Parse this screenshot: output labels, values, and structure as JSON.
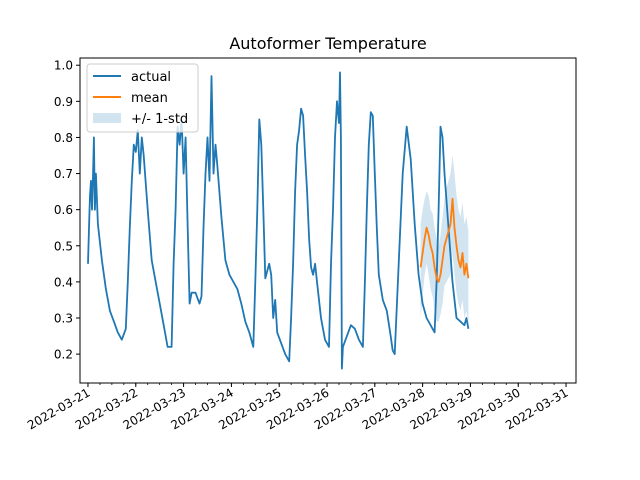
{
  "chart_data": {
    "type": "line",
    "title": "Autoformer Temperature",
    "xlabel": "",
    "ylabel": "",
    "xlim": [
      "2022-03-20T20:00",
      "2022-03-31T05:00"
    ],
    "ylim": [
      0.12,
      1.02
    ],
    "yticks": [
      0.2,
      0.3,
      0.4,
      0.5,
      0.6,
      0.7,
      0.8,
      0.9,
      1.0
    ],
    "ytick_labels": [
      "0.2",
      "0.3",
      "0.4",
      "0.5",
      "0.6",
      "0.7",
      "0.8",
      "0.9",
      "1.0"
    ],
    "xticks": [
      "2022-03-21",
      "2022-03-22",
      "2022-03-23",
      "2022-03-24",
      "2022-03-25",
      "2022-03-26",
      "2022-03-27",
      "2022-03-28",
      "2022-03-29",
      "2022-03-30",
      "2022-03-31"
    ],
    "xtick_labels": [
      "2022-03-21",
      "2022-03-22",
      "2022-03-23",
      "2022-03-24",
      "2022-03-25",
      "2022-03-26",
      "2022-03-27",
      "2022-03-28",
      "2022-03-29",
      "2022-03-30",
      "2022-03-31"
    ],
    "minor_xtick_hours": 6,
    "grid": false,
    "legend_position": "top-left",
    "series": [
      {
        "name": "actual",
        "color": "#1f77b4",
        "kind": "line",
        "points": [
          [
            "2022-03-21T00:00",
            0.45
          ],
          [
            "2022-03-21T00:30",
            0.55
          ],
          [
            "2022-03-21T01:00",
            0.64
          ],
          [
            "2022-03-21T01:30",
            0.68
          ],
          [
            "2022-03-21T02:00",
            0.6
          ],
          [
            "2022-03-21T02:30",
            0.68
          ],
          [
            "2022-03-21T03:00",
            0.8
          ],
          [
            "2022-03-21T03:30",
            0.6
          ],
          [
            "2022-03-21T04:00",
            0.7
          ],
          [
            "2022-03-21T05:00",
            0.56
          ],
          [
            "2022-03-21T07:00",
            0.46
          ],
          [
            "2022-03-21T09:00",
            0.38
          ],
          [
            "2022-03-21T11:00",
            0.32
          ],
          [
            "2022-03-21T13:00",
            0.29
          ],
          [
            "2022-03-21T15:00",
            0.26
          ],
          [
            "2022-03-21T17:00",
            0.24
          ],
          [
            "2022-03-21T19:00",
            0.27
          ],
          [
            "2022-03-21T20:00",
            0.4
          ],
          [
            "2022-03-21T21:00",
            0.55
          ],
          [
            "2022-03-21T22:00",
            0.68
          ],
          [
            "2022-03-21T23:00",
            0.78
          ],
          [
            "2022-03-22T00:00",
            0.76
          ],
          [
            "2022-03-22T01:00",
            0.82
          ],
          [
            "2022-03-22T02:00",
            0.7
          ],
          [
            "2022-03-22T03:00",
            0.8
          ],
          [
            "2022-03-22T04:00",
            0.75
          ],
          [
            "2022-03-22T06:00",
            0.6
          ],
          [
            "2022-03-22T08:00",
            0.46
          ],
          [
            "2022-03-22T10:00",
            0.4
          ],
          [
            "2022-03-22T12:00",
            0.34
          ],
          [
            "2022-03-22T14:00",
            0.28
          ],
          [
            "2022-03-22T16:00",
            0.22
          ],
          [
            "2022-03-22T18:00",
            0.22
          ],
          [
            "2022-03-22T19:00",
            0.45
          ],
          [
            "2022-03-22T20:00",
            0.6
          ],
          [
            "2022-03-22T21:00",
            0.83
          ],
          [
            "2022-03-22T22:00",
            0.78
          ],
          [
            "2022-03-22T23:00",
            0.85
          ],
          [
            "2022-03-23T00:00",
            0.7
          ],
          [
            "2022-03-23T01:00",
            0.8
          ],
          [
            "2022-03-23T02:00",
            0.56
          ],
          [
            "2022-03-23T03:00",
            0.34
          ],
          [
            "2022-03-23T04:00",
            0.37
          ],
          [
            "2022-03-23T06:00",
            0.37
          ],
          [
            "2022-03-23T08:00",
            0.34
          ],
          [
            "2022-03-23T09:00",
            0.36
          ],
          [
            "2022-03-23T10:00",
            0.55
          ],
          [
            "2022-03-23T11:00",
            0.7
          ],
          [
            "2022-03-23T12:00",
            0.8
          ],
          [
            "2022-03-23T13:00",
            0.68
          ],
          [
            "2022-03-23T14:00",
            0.97
          ],
          [
            "2022-03-23T15:00",
            0.7
          ],
          [
            "2022-03-23T16:00",
            0.78
          ],
          [
            "2022-03-23T17:00",
            0.72
          ],
          [
            "2022-03-23T19:00",
            0.58
          ],
          [
            "2022-03-23T21:00",
            0.46
          ],
          [
            "2022-03-23T23:00",
            0.42
          ],
          [
            "2022-03-24T01:00",
            0.4
          ],
          [
            "2022-03-24T03:00",
            0.38
          ],
          [
            "2022-03-24T05:00",
            0.34
          ],
          [
            "2022-03-24T07:00",
            0.29
          ],
          [
            "2022-03-24T09:00",
            0.26
          ],
          [
            "2022-03-24T11:00",
            0.22
          ],
          [
            "2022-03-24T12:00",
            0.4
          ],
          [
            "2022-03-24T13:00",
            0.6
          ],
          [
            "2022-03-24T14:00",
            0.85
          ],
          [
            "2022-03-24T15:00",
            0.78
          ],
          [
            "2022-03-24T16:00",
            0.6
          ],
          [
            "2022-03-24T17:00",
            0.41
          ],
          [
            "2022-03-24T18:00",
            0.43
          ],
          [
            "2022-03-24T19:00",
            0.45
          ],
          [
            "2022-03-24T20:00",
            0.42
          ],
          [
            "2022-03-24T21:00",
            0.3
          ],
          [
            "2022-03-24T22:00",
            0.35
          ],
          [
            "2022-03-24T23:00",
            0.26
          ],
          [
            "2022-03-25T01:00",
            0.23
          ],
          [
            "2022-03-25T03:00",
            0.2
          ],
          [
            "2022-03-25T05:00",
            0.18
          ],
          [
            "2022-03-25T06:00",
            0.3
          ],
          [
            "2022-03-25T07:00",
            0.45
          ],
          [
            "2022-03-25T08:00",
            0.65
          ],
          [
            "2022-03-25T09:00",
            0.78
          ],
          [
            "2022-03-25T10:00",
            0.82
          ],
          [
            "2022-03-25T11:00",
            0.88
          ],
          [
            "2022-03-25T12:00",
            0.86
          ],
          [
            "2022-03-25T13:00",
            0.75
          ],
          [
            "2022-03-25T14:00",
            0.65
          ],
          [
            "2022-03-25T15:00",
            0.52
          ],
          [
            "2022-03-25T16:00",
            0.44
          ],
          [
            "2022-03-25T17:00",
            0.42
          ],
          [
            "2022-03-25T18:00",
            0.45
          ],
          [
            "2022-03-25T19:00",
            0.4
          ],
          [
            "2022-03-25T21:00",
            0.3
          ],
          [
            "2022-03-25T23:00",
            0.24
          ],
          [
            "2022-03-26T01:00",
            0.22
          ],
          [
            "2022-03-26T02:00",
            0.45
          ],
          [
            "2022-03-26T03:00",
            0.6
          ],
          [
            "2022-03-26T04:00",
            0.8
          ],
          [
            "2022-03-26T05:00",
            0.9
          ],
          [
            "2022-03-26T06:00",
            0.84
          ],
          [
            "2022-03-26T06:30",
            0.98
          ],
          [
            "2022-03-26T07:00",
            0.8
          ],
          [
            "2022-03-26T07:30",
            0.16
          ],
          [
            "2022-03-26T08:00",
            0.22
          ],
          [
            "2022-03-26T10:00",
            0.25
          ],
          [
            "2022-03-26T12:00",
            0.28
          ],
          [
            "2022-03-26T14:00",
            0.27
          ],
          [
            "2022-03-26T16:00",
            0.24
          ],
          [
            "2022-03-26T18:00",
            0.22
          ],
          [
            "2022-03-26T19:00",
            0.4
          ],
          [
            "2022-03-26T20:00",
            0.6
          ],
          [
            "2022-03-26T21:00",
            0.78
          ],
          [
            "2022-03-26T22:00",
            0.87
          ],
          [
            "2022-03-26T23:00",
            0.86
          ],
          [
            "2022-03-27T00:00",
            0.7
          ],
          [
            "2022-03-27T01:00",
            0.55
          ],
          [
            "2022-03-27T02:00",
            0.42
          ],
          [
            "2022-03-27T04:00",
            0.35
          ],
          [
            "2022-03-27T06:00",
            0.32
          ],
          [
            "2022-03-27T08:00",
            0.25
          ],
          [
            "2022-03-27T09:00",
            0.21
          ],
          [
            "2022-03-27T10:00",
            0.2
          ],
          [
            "2022-03-27T12:00",
            0.45
          ],
          [
            "2022-03-27T14:00",
            0.7
          ],
          [
            "2022-03-27T16:00",
            0.83
          ],
          [
            "2022-03-27T18:00",
            0.74
          ],
          [
            "2022-03-27T20:00",
            0.56
          ],
          [
            "2022-03-27T22:00",
            0.42
          ],
          [
            "2022-03-28T00:00",
            0.34
          ],
          [
            "2022-03-28T02:00",
            0.3
          ],
          [
            "2022-03-28T04:00",
            0.28
          ],
          [
            "2022-03-28T06:00",
            0.26
          ],
          [
            "2022-03-28T07:00",
            0.4
          ],
          [
            "2022-03-28T08:00",
            0.6
          ],
          [
            "2022-03-28T09:00",
            0.83
          ],
          [
            "2022-03-28T10:00",
            0.8
          ],
          [
            "2022-03-28T11:00",
            0.7
          ],
          [
            "2022-03-28T13:00",
            0.55
          ],
          [
            "2022-03-28T15:00",
            0.4
          ],
          [
            "2022-03-28T17:00",
            0.3
          ],
          [
            "2022-03-28T19:00",
            0.29
          ],
          [
            "2022-03-28T21:00",
            0.28
          ],
          [
            "2022-03-28T22:00",
            0.3
          ],
          [
            "2022-03-28T23:00",
            0.27
          ]
        ]
      },
      {
        "name": "mean",
        "color": "#ff7f0e",
        "kind": "line",
        "points": [
          [
            "2022-03-27T23:00",
            0.44
          ],
          [
            "2022-03-28T00:00",
            0.48
          ],
          [
            "2022-03-28T01:00",
            0.52
          ],
          [
            "2022-03-28T02:00",
            0.55
          ],
          [
            "2022-03-28T03:00",
            0.53
          ],
          [
            "2022-03-28T04:00",
            0.5
          ],
          [
            "2022-03-28T05:00",
            0.48
          ],
          [
            "2022-03-28T06:00",
            0.44
          ],
          [
            "2022-03-28T07:00",
            0.41
          ],
          [
            "2022-03-28T08:00",
            0.4
          ],
          [
            "2022-03-28T09:00",
            0.42
          ],
          [
            "2022-03-28T10:00",
            0.46
          ],
          [
            "2022-03-28T11:00",
            0.5
          ],
          [
            "2022-03-28T12:00",
            0.52
          ],
          [
            "2022-03-28T13:00",
            0.54
          ],
          [
            "2022-03-28T14:00",
            0.56
          ],
          [
            "2022-03-28T15:00",
            0.63
          ],
          [
            "2022-03-28T16:00",
            0.55
          ],
          [
            "2022-03-28T17:00",
            0.5
          ],
          [
            "2022-03-28T18:00",
            0.46
          ],
          [
            "2022-03-28T19:00",
            0.44
          ],
          [
            "2022-03-28T20:00",
            0.48
          ],
          [
            "2022-03-28T21:00",
            0.42
          ],
          [
            "2022-03-28T22:00",
            0.45
          ],
          [
            "2022-03-28T23:00",
            0.41
          ]
        ]
      },
      {
        "name": "+/- 1-std",
        "color": "#1f77b4",
        "kind": "band",
        "opacity": 0.2,
        "points": [
          [
            "2022-03-27T23:00",
            0.3,
            0.56
          ],
          [
            "2022-03-28T00:00",
            0.36,
            0.6
          ],
          [
            "2022-03-28T01:00",
            0.42,
            0.63
          ],
          [
            "2022-03-28T02:00",
            0.45,
            0.65
          ],
          [
            "2022-03-28T03:00",
            0.42,
            0.64
          ],
          [
            "2022-03-28T04:00",
            0.38,
            0.6
          ],
          [
            "2022-03-28T05:00",
            0.36,
            0.59
          ],
          [
            "2022-03-28T06:00",
            0.32,
            0.55
          ],
          [
            "2022-03-28T07:00",
            0.29,
            0.52
          ],
          [
            "2022-03-28T08:00",
            0.29,
            0.5
          ],
          [
            "2022-03-28T09:00",
            0.31,
            0.53
          ],
          [
            "2022-03-28T10:00",
            0.34,
            0.58
          ],
          [
            "2022-03-28T11:00",
            0.39,
            0.63
          ],
          [
            "2022-03-28T12:00",
            0.4,
            0.66
          ],
          [
            "2022-03-28T13:00",
            0.41,
            0.68
          ],
          [
            "2022-03-28T14:00",
            0.42,
            0.7
          ],
          [
            "2022-03-28T15:00",
            0.48,
            0.75
          ],
          [
            "2022-03-28T16:00",
            0.42,
            0.7
          ],
          [
            "2022-03-28T17:00",
            0.37,
            0.64
          ],
          [
            "2022-03-28T18:00",
            0.34,
            0.6
          ],
          [
            "2022-03-28T19:00",
            0.32,
            0.58
          ],
          [
            "2022-03-28T20:00",
            0.35,
            0.62
          ],
          [
            "2022-03-28T21:00",
            0.3,
            0.56
          ],
          [
            "2022-03-28T22:00",
            0.32,
            0.58
          ],
          [
            "2022-03-28T23:00",
            0.28,
            0.54
          ]
        ]
      }
    ]
  }
}
